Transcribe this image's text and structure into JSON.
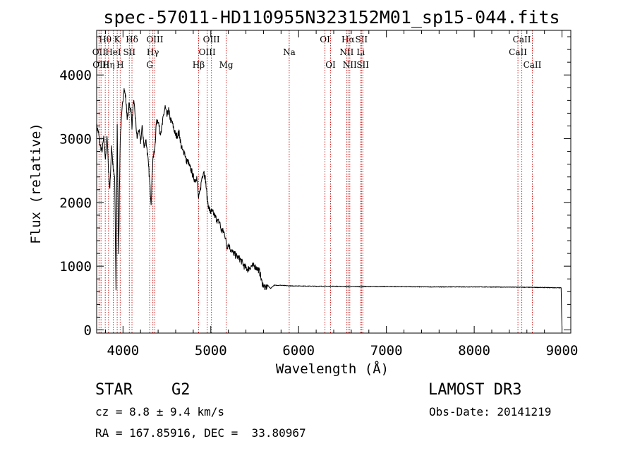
{
  "chart_data": {
    "type": "line",
    "title": "spec-57011-HD110955N323152M01_sp15-044.fits",
    "xlabel": "Wavelength (Å)",
    "ylabel": "Flux (relative)",
    "xlim": [
      3700,
      9100
    ],
    "ylim": [
      -50,
      4700
    ],
    "x_ticks": [
      4000,
      5000,
      6000,
      7000,
      8000,
      9000
    ],
    "y_ticks": [
      0,
      1000,
      2000,
      3000,
      4000
    ],
    "grid": false,
    "series": [
      {
        "name": "spectrum",
        "color": "#000000",
        "x": [
          3700,
          3720,
          3740,
          3760,
          3780,
          3800,
          3820,
          3835,
          3850,
          3870,
          3889,
          3905,
          3920,
          3934,
          3950,
          3968,
          3990,
          4010,
          4030,
          4050,
          4070,
          4090,
          4102,
          4120,
          4140,
          4160,
          4180,
          4200,
          4220,
          4240,
          4260,
          4280,
          4300,
          4320,
          4340,
          4360,
          4380,
          4400,
          4420,
          4440,
          4460,
          4480,
          4500,
          4520,
          4540,
          4560,
          4580,
          4600,
          4620,
          4640,
          4660,
          4680,
          4700,
          4720,
          4740,
          4760,
          4780,
          4800,
          4820,
          4840,
          4861,
          4880,
          4900,
          4920,
          4940,
          4960,
          4980,
          5000,
          5020,
          5040,
          5060,
          5080,
          5100,
          5120,
          5140,
          5160,
          5183,
          5200,
          5230,
          5260,
          5300,
          5340,
          5380,
          5420,
          5460,
          5500,
          5540,
          5560,
          5580,
          5600,
          5620,
          5650,
          5680,
          5720,
          5800,
          5900,
          6000,
          6200,
          6400,
          6563,
          6800,
          7000,
          7500,
          8000,
          8500,
          8800,
          8990,
          9000
        ],
        "y": [
          3200,
          3100,
          2900,
          2800,
          3000,
          2700,
          3050,
          2500,
          2200,
          2900,
          2500,
          2400,
          650,
          3200,
          1200,
          3000,
          3450,
          3800,
          3650,
          3300,
          3550,
          3450,
          3200,
          3600,
          3350,
          3000,
          3150,
          2950,
          3200,
          2850,
          3000,
          2750,
          2400,
          2000,
          2700,
          2800,
          3250,
          3300,
          3100,
          3150,
          3350,
          3500,
          3350,
          3450,
          3300,
          3250,
          3150,
          3050,
          3050,
          3100,
          2900,
          2800,
          2800,
          2650,
          2650,
          2550,
          2500,
          2400,
          2350,
          2400,
          2050,
          2200,
          2400,
          2500,
          2350,
          2050,
          1900,
          1850,
          1850,
          1800,
          1750,
          1700,
          1700,
          1550,
          1550,
          1500,
          1300,
          1350,
          1250,
          1200,
          1150,
          1100,
          1000,
          950,
          1000,
          1000,
          950,
          900,
          750,
          700,
          650,
          700,
          650,
          700,
          700,
          690,
          690,
          685,
          685,
          680,
          680,
          680,
          675,
          675,
          670,
          665,
          660,
          0
        ]
      }
    ],
    "lines": [
      {
        "name": "Hθ",
        "x": 3798,
        "row": 0
      },
      {
        "name": "OII",
        "x": 3727,
        "row": 1
      },
      {
        "name": "OIII",
        "x": 3750,
        "row": 2
      },
      {
        "name": "Hη",
        "x": 3835,
        "row": 2
      },
      {
        "name": "HeI",
        "x": 3889,
        "row": 1
      },
      {
        "name": "K",
        "x": 3934,
        "row": 0
      },
      {
        "name": "H",
        "x": 3968,
        "row": 2
      },
      {
        "name": "SII",
        "x": 4072,
        "row": 1
      },
      {
        "name": "Hδ",
        "x": 4102,
        "row": 0
      },
      {
        "name": "OIII",
        "x": 4363,
        "row": 0
      },
      {
        "name": "Hγ",
        "x": 4340,
        "row": 1
      },
      {
        "name": "G",
        "x": 4304,
        "row": 2
      },
      {
        "name": "Hβ",
        "x": 4861,
        "row": 2
      },
      {
        "name": "OIII",
        "x": 5007,
        "row": 0
      },
      {
        "name": "OIII",
        "x": 4959,
        "row": 1
      },
      {
        "name": "Mg",
        "x": 5175,
        "row": 2
      },
      {
        "name": "Na",
        "x": 5893,
        "row": 1
      },
      {
        "name": "OI",
        "x": 6300,
        "row": 0
      },
      {
        "name": "OI",
        "x": 6364,
        "row": 2
      },
      {
        "name": "Hα",
        "x": 6563,
        "row": 0
      },
      {
        "name": "NII",
        "x": 6548,
        "row": 1
      },
      {
        "name": "NII",
        "x": 6583,
        "row": 2
      },
      {
        "name": "SII",
        "x": 6716,
        "row": 0
      },
      {
        "name": "Li",
        "x": 6707,
        "row": 1
      },
      {
        "name": "SII",
        "x": 6731,
        "row": 2
      },
      {
        "name": "CaII",
        "x": 8542,
        "row": 0
      },
      {
        "name": "CaII",
        "x": 8498,
        "row": 1
      },
      {
        "name": "CaII",
        "x": 8662,
        "row": 2
      }
    ]
  },
  "info": {
    "class": "STAR",
    "subclass": "G2",
    "survey": "LAMOST DR3",
    "cz": "cz = 8.8 ± 9.4 km/s",
    "obs_date": "Obs-Date: 20141219",
    "radec": "RA = 167.85916, DEC =  33.80967"
  }
}
